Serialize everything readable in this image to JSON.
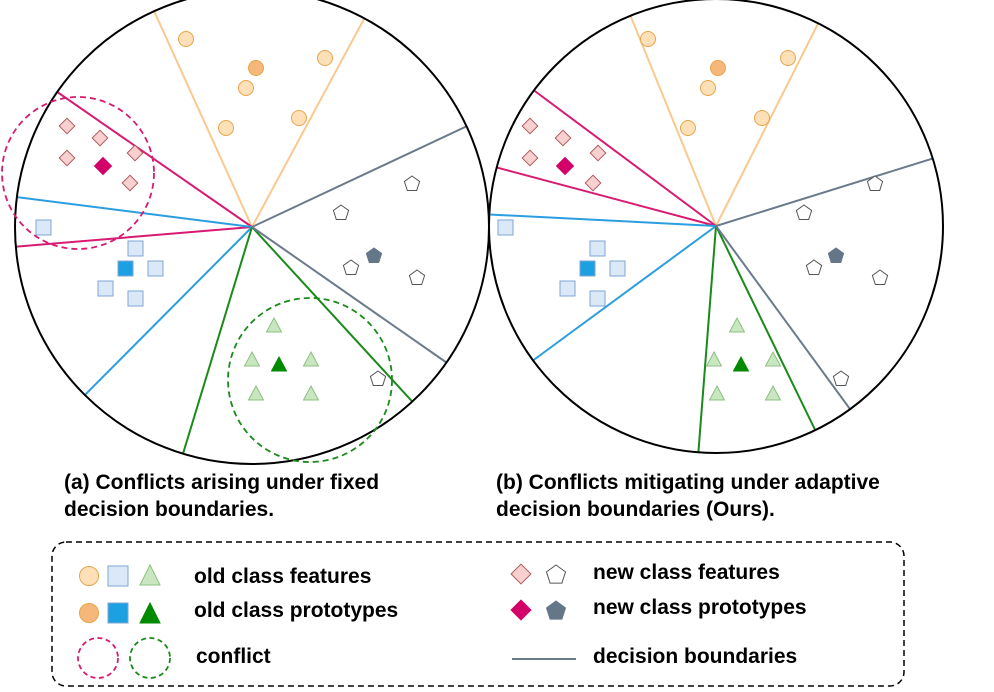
{
  "captions": {
    "a_line1": "(a) Conflicts arising under fixed",
    "a_line2": "decision boundaries.",
    "b_line1": "(b)  Conflicts mitigating under adaptive",
    "b_line2": "decision boundaries (Ours)."
  },
  "legend": {
    "old_features": "old class features",
    "old_prototypes": "old class prototypes",
    "conflict": "conflict",
    "new_features": "new class features",
    "new_prototypes": "new class prototypes",
    "boundaries": "decision boundaries"
  },
  "colors": {
    "orange_fill": "#fde0b8",
    "orange_stroke": "#e8a54c",
    "orange_proto": "#f5b87a",
    "orange_line": "#f9c98d",
    "blue_fill": "#dbe8f8",
    "blue_stroke": "#7fa6d6",
    "blue_proto": "#1ba1e2",
    "blue_line": "#2b9ee0",
    "green_fill": "#c8e6c0",
    "green_stroke": "#8cc080",
    "green_proto": "#008a00",
    "green_line": "#1a8a1a",
    "pink_fill": "#f8d0d0",
    "pink_stroke": "#b05a5a",
    "magenta_proto": "#d4006a",
    "magenta_line": "#d81b72",
    "gray_fill": "#ffffff",
    "gray_stroke": "#555555",
    "gray_proto": "#647687",
    "gray_line": "#6b7b8c"
  }
}
